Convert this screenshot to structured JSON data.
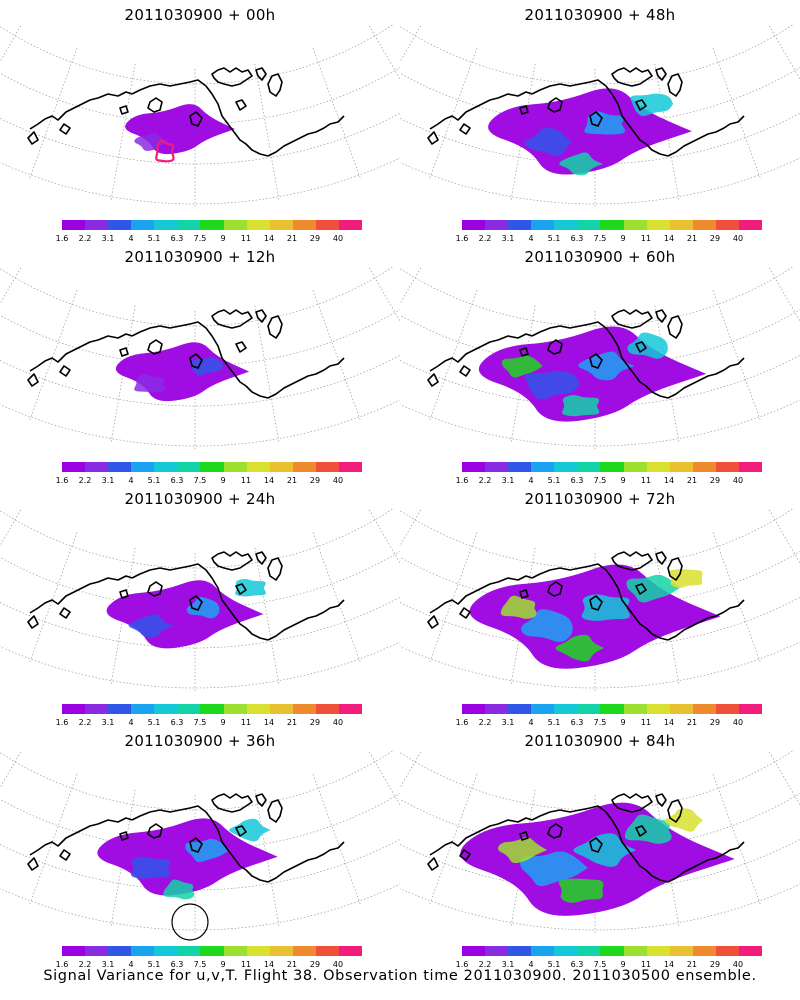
{
  "caption": "Signal Variance for u,v,T. Flight 38. Observation time 2011030900. 2011030500 ensemble.",
  "colorbar": {
    "colors": [
      "#9b00e0",
      "#8a2be2",
      "#3056e8",
      "#1ca3f0",
      "#14c8d8",
      "#13d4a8",
      "#1ed81e",
      "#9de030",
      "#d8e030",
      "#e8c030",
      "#f08a30",
      "#f0503a",
      "#f01e7a"
    ],
    "labels": [
      "1.6",
      "2.2",
      "3.1",
      "4",
      "5.1",
      "6.3",
      "7.5",
      "9",
      "11",
      "14",
      "21",
      "29",
      "40"
    ]
  },
  "panels": [
    {
      "title": "2011030900 + 00h",
      "lead": 0
    },
    {
      "title": "2011030900 + 48h",
      "lead": 48
    },
    {
      "title": "2011030900 + 12h",
      "lead": 12
    },
    {
      "title": "2011030900 + 60h",
      "lead": 60
    },
    {
      "title": "2011030900 + 24h",
      "lead": 24
    },
    {
      "title": "2011030900 + 72h",
      "lead": 72
    },
    {
      "title": "2011030900 + 36h",
      "lead": 36
    },
    {
      "title": "2011030900 + 84h",
      "lead": 84
    }
  ]
}
